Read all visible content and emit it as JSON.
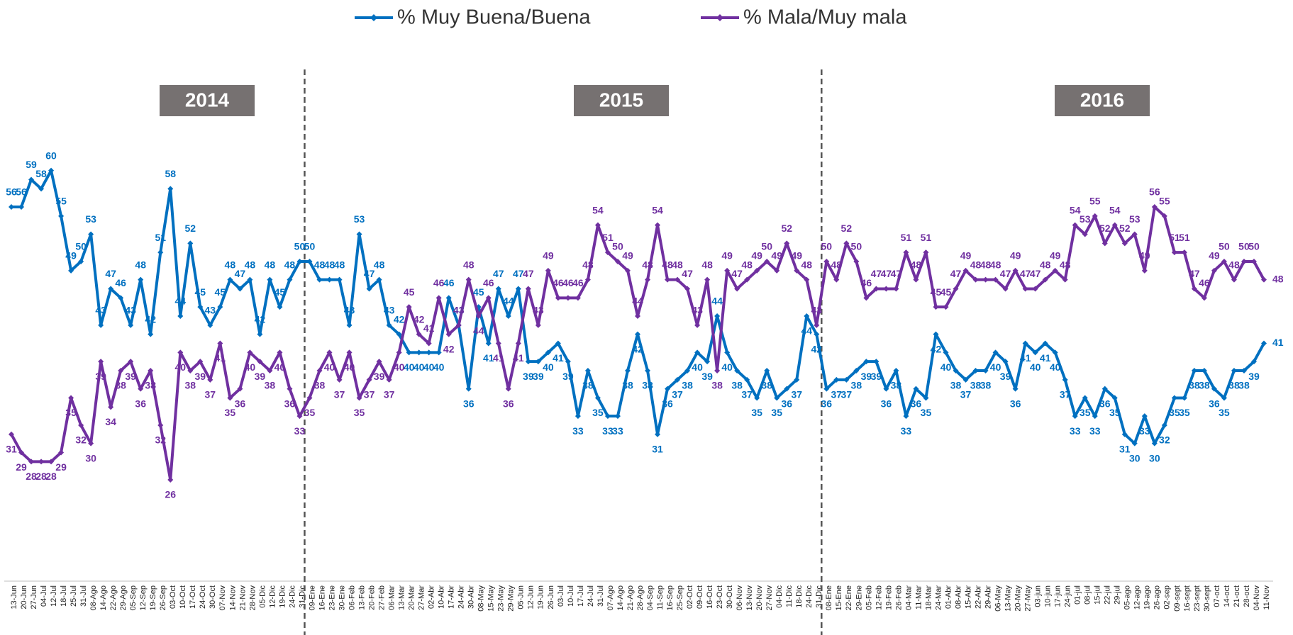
{
  "chart_data": {
    "type": "line",
    "categories": [
      "13-Jun",
      "20-Jun",
      "27-Jun",
      "04-Jul",
      "12-Jul",
      "18-Jul",
      "25-Jul",
      "31-Jul",
      "08-Ago",
      "14-Ago",
      "22-Ago",
      "29-Ago",
      "05-Sep",
      "12-Sep",
      "19-Sep",
      "26-Sep",
      "03-Oct",
      "10-Oct",
      "17-Oct",
      "24-Oct",
      "30-Oct",
      "07-Nov",
      "14-Nov",
      "21-Nov",
      "28-Nov",
      "05-Dic",
      "12-Dic",
      "19-Dic",
      "24-Dic",
      "31-Dic",
      "09-Ene",
      "16-Ene",
      "23-Ene",
      "30-Ene",
      "06-Feb",
      "13-Feb",
      "20-Feb",
      "27-Feb",
      "06-Mar",
      "13-Mar",
      "20-Mar",
      "27-Mar",
      "02-Abr",
      "10-Abr",
      "17-Abr",
      "24-Abr",
      "30-Abr",
      "08-May",
      "15-May",
      "23-May",
      "29-May",
      "05-Jun",
      "12-Jun",
      "19-Jun",
      "26-Jun",
      "03-Jul",
      "10-Jul",
      "17-Jul",
      "24-Jul",
      "31-Jul",
      "07-Ago",
      "14-Ago",
      "21-Ago",
      "28-Ago",
      "04-Sep",
      "11-Sep",
      "16-Sep",
      "25-Sep",
      "02-Oct",
      "09-Oct",
      "16-Oct",
      "23-Oct",
      "30-Oct",
      "06-Nov",
      "13-Nov",
      "20-Nov",
      "27-Nov",
      "04-Dic",
      "11-Dic",
      "18-Dic",
      "24-Dic",
      "31-Dic",
      "08-Ene",
      "15-Ene",
      "22-Ene",
      "29-Ene",
      "05-Feb",
      "12-Feb",
      "19-Feb",
      "26-Feb",
      "04-Mar",
      "11-Mar",
      "18-Mar",
      "24-Mar",
      "01-Abr",
      "08-Abr",
      "15-Abr",
      "22-Abr",
      "29-Abr",
      "06-May",
      "13-May",
      "20-May",
      "27-May",
      "03-jun",
      "10-jun",
      "17-jun",
      "24-jun",
      "01-jul",
      "08-jul",
      "15-jul",
      "22-jul",
      "29-jul",
      "05-ago",
      "12-ago",
      "19-ago",
      "26-ago",
      "02-sep",
      "09-sept",
      "16-sept",
      "23-sept",
      "30-sept",
      "07-oct",
      "14-oct",
      "21-oct",
      "28-oct",
      "04-Nov",
      "11-Nov"
    ],
    "series": [
      {
        "name": "% Muy Buena/Buena",
        "color": "#0070c0",
        "values": [
          56,
          56,
          59,
          58,
          60,
          55,
          49,
          50,
          53,
          43,
          47,
          46,
          43,
          48,
          42,
          51,
          58,
          44,
          52,
          45,
          43,
          45,
          48,
          47,
          48,
          42,
          48,
          45,
          48,
          50,
          50,
          48,
          48,
          48,
          43,
          53,
          47,
          48,
          43,
          42,
          40,
          40,
          40,
          40,
          46,
          43,
          36,
          45,
          41,
          47,
          44,
          47,
          39,
          39,
          40,
          41,
          39,
          33,
          38,
          35,
          33,
          33,
          38,
          42,
          38,
          31,
          36,
          37,
          38,
          40,
          39,
          44,
          40,
          38,
          37,
          35,
          38,
          35,
          36,
          37,
          44,
          42,
          36,
          37,
          37,
          38,
          39,
          39,
          36,
          38,
          33,
          36,
          35,
          42,
          40,
          38,
          37,
          38,
          38,
          40,
          39,
          36,
          41,
          40,
          41,
          40,
          37,
          33,
          35,
          33,
          36,
          35,
          31,
          30,
          33,
          30,
          32,
          35,
          35,
          38,
          38,
          36,
          35,
          38,
          38,
          39,
          41
        ]
      },
      {
        "name": "% Mala/Muy mala",
        "color": "#7030a0",
        "values": [
          31,
          29,
          28,
          28,
          28,
          29,
          35,
          32,
          30,
          39,
          34,
          38,
          39,
          36,
          38,
          32,
          26,
          40,
          38,
          39,
          37,
          41,
          35,
          36,
          40,
          39,
          38,
          40,
          36,
          33,
          35,
          38,
          40,
          37,
          40,
          35,
          37,
          39,
          37,
          40,
          45,
          42,
          41,
          46,
          42,
          43,
          48,
          44,
          46,
          41,
          36,
          41,
          47,
          43,
          49,
          46,
          46,
          46,
          48,
          54,
          51,
          50,
          49,
          44,
          48,
          54,
          48,
          48,
          47,
          43,
          48,
          38,
          49,
          47,
          48,
          49,
          50,
          49,
          52,
          49,
          48,
          43,
          50,
          48,
          52,
          50,
          46,
          47,
          47,
          47,
          51,
          48,
          51,
          45,
          45,
          47,
          49,
          48,
          48,
          48,
          47,
          49,
          47,
          47,
          48,
          49,
          48,
          54,
          53,
          55,
          52,
          54,
          52,
          53,
          49,
          56,
          55,
          51,
          51,
          47,
          46,
          49,
          50,
          48,
          50,
          50,
          48
        ]
      }
    ],
    "annotations": [
      "2014",
      "2015",
      "2016"
    ],
    "ylim": [
      20,
      68
    ]
  }
}
